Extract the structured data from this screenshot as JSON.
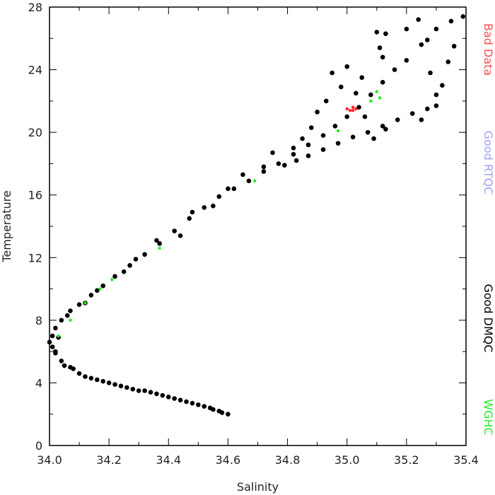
{
  "chart_data": {
    "type": "scatter",
    "title": "",
    "xlabel": "Salinity",
    "ylabel": "Temperature",
    "xlim": [
      34.0,
      35.4
    ],
    "ylim": [
      0,
      28
    ],
    "x_tick_labels": [
      "34.0",
      "34.2",
      "34.4",
      "34.6",
      "34.8",
      "35.0",
      "35.2",
      "35.4"
    ],
    "y_tick_labels": [
      "0",
      "4",
      "8",
      "12",
      "16",
      "20",
      "24",
      "28"
    ],
    "x_ticks": [
      34.0,
      34.2,
      34.4,
      34.6,
      34.8,
      35.0,
      35.2,
      35.4
    ],
    "y_ticks": [
      0,
      4,
      8,
      12,
      16,
      20,
      24,
      28
    ],
    "grid": false,
    "legend_position": "right",
    "legend": [
      {
        "label": "Bad Data",
        "color": "#ff4d4d"
      },
      {
        "label": "Good RTQC",
        "color": "#a0a0ff"
      },
      {
        "label": "Good DMQC",
        "color": "#000000"
      },
      {
        "label": "WGHC",
        "color": "#22ee22"
      }
    ],
    "series": [
      {
        "name": "Good DMQC",
        "color": "#000000",
        "points": [
          [
            34.6,
            2.0
          ],
          [
            34.57,
            2.2
          ],
          [
            34.54,
            2.4
          ],
          [
            34.5,
            2.6
          ],
          [
            34.46,
            2.8
          ],
          [
            34.42,
            3.0
          ],
          [
            34.38,
            3.2
          ],
          [
            34.34,
            3.4
          ],
          [
            34.3,
            3.5
          ],
          [
            34.26,
            3.7
          ],
          [
            34.22,
            3.9
          ],
          [
            34.18,
            4.1
          ],
          [
            34.14,
            4.3
          ],
          [
            34.1,
            4.6
          ],
          [
            34.07,
            5.0
          ],
          [
            34.04,
            5.4
          ],
          [
            34.02,
            5.9
          ],
          [
            34.01,
            6.3
          ],
          [
            34.0,
            6.6
          ],
          [
            34.01,
            7.0
          ],
          [
            34.02,
            7.5
          ],
          [
            34.04,
            8.0
          ],
          [
            34.07,
            8.6
          ],
          [
            34.1,
            9.0
          ],
          [
            34.14,
            9.6
          ],
          [
            34.18,
            10.2
          ],
          [
            34.22,
            10.8
          ],
          [
            34.27,
            11.5
          ],
          [
            34.32,
            12.2
          ],
          [
            34.37,
            12.9
          ],
          [
            34.42,
            13.7
          ],
          [
            34.47,
            14.5
          ],
          [
            34.52,
            15.2
          ],
          [
            34.57,
            15.9
          ],
          [
            34.62,
            16.4
          ],
          [
            34.67,
            16.9
          ],
          [
            34.72,
            17.5
          ],
          [
            34.77,
            18.0
          ],
          [
            34.82,
            18.6
          ],
          [
            34.87,
            19.2
          ],
          [
            34.92,
            19.8
          ],
          [
            34.96,
            20.4
          ],
          [
            35.0,
            21.0
          ],
          [
            35.04,
            21.6
          ],
          [
            35.08,
            22.4
          ],
          [
            35.12,
            23.2
          ],
          [
            35.16,
            24.0
          ],
          [
            35.2,
            24.6
          ],
          [
            35.25,
            25.6
          ],
          [
            35.3,
            26.6
          ],
          [
            35.35,
            27.1
          ],
          [
            35.39,
            27.4
          ],
          [
            34.79,
            17.9
          ],
          [
            34.83,
            18.2
          ],
          [
            34.87,
            18.5
          ],
          [
            34.92,
            18.9
          ],
          [
            34.97,
            19.3
          ],
          [
            35.02,
            19.7
          ],
          [
            35.07,
            20.0
          ],
          [
            35.12,
            20.4
          ],
          [
            35.17,
            20.8
          ],
          [
            35.22,
            21.2
          ],
          [
            35.27,
            21.5
          ],
          [
            35.3,
            21.7
          ],
          [
            34.95,
            23.8
          ],
          [
            35.0,
            24.2
          ],
          [
            35.05,
            23.5
          ],
          [
            35.03,
            22.5
          ],
          [
            35.06,
            21.0
          ],
          [
            35.09,
            19.6
          ],
          [
            35.13,
            20.2
          ],
          [
            35.1,
            26.4
          ],
          [
            35.13,
            26.3
          ],
          [
            35.11,
            25.4
          ],
          [
            35.12,
            24.8
          ],
          [
            35.2,
            26.6
          ],
          [
            35.24,
            27.2
          ],
          [
            35.27,
            25.9
          ],
          [
            35.28,
            23.8
          ],
          [
            35.32,
            23.0
          ],
          [
            35.34,
            24.5
          ],
          [
            35.36,
            25.5
          ],
          [
            35.3,
            22.4
          ],
          [
            35.25,
            20.8
          ],
          [
            34.98,
            22.9
          ],
          [
            34.93,
            22.0
          ],
          [
            34.9,
            21.3
          ],
          [
            34.88,
            20.3
          ],
          [
            34.85,
            19.6
          ],
          [
            34.82,
            19.0
          ],
          [
            34.75,
            18.7
          ],
          [
            34.72,
            17.8
          ],
          [
            34.65,
            17.3
          ],
          [
            34.6,
            16.4
          ],
          [
            34.55,
            15.3
          ],
          [
            34.48,
            14.9
          ],
          [
            34.44,
            13.4
          ],
          [
            34.36,
            13.1
          ],
          [
            34.29,
            11.9
          ],
          [
            34.25,
            11.1
          ],
          [
            34.16,
            9.9
          ],
          [
            34.12,
            9.1
          ],
          [
            34.06,
            8.3
          ],
          [
            34.03,
            6.9
          ],
          [
            34.02,
            6.0
          ],
          [
            34.05,
            5.1
          ],
          [
            34.08,
            4.9
          ],
          [
            34.12,
            4.4
          ],
          [
            34.16,
            4.2
          ],
          [
            34.2,
            4.0
          ],
          [
            34.24,
            3.8
          ],
          [
            34.28,
            3.6
          ],
          [
            34.32,
            3.5
          ],
          [
            34.36,
            3.3
          ],
          [
            34.4,
            3.1
          ],
          [
            34.44,
            2.9
          ],
          [
            34.48,
            2.7
          ],
          [
            34.52,
            2.5
          ],
          [
            34.55,
            2.3
          ],
          [
            34.58,
            2.1
          ]
        ]
      },
      {
        "name": "WGHC",
        "color": "#22ee22",
        "points": [
          [
            34.03,
            7.0
          ],
          [
            34.07,
            8.0
          ],
          [
            34.12,
            9.1
          ],
          [
            34.17,
            10.0
          ],
          [
            34.21,
            10.6
          ],
          [
            34.37,
            12.6
          ],
          [
            34.69,
            16.9
          ],
          [
            35.1,
            22.6
          ],
          [
            35.11,
            22.2
          ],
          [
            35.08,
            22.0
          ],
          [
            34.97,
            20.1
          ]
        ]
      },
      {
        "name": "Bad Data",
        "color": "#ff2020",
        "points": [
          [
            35.0,
            21.5
          ],
          [
            35.02,
            21.6
          ],
          [
            35.01,
            21.4
          ],
          [
            35.03,
            21.5
          ],
          [
            35.02,
            21.4
          ]
        ]
      }
    ]
  }
}
